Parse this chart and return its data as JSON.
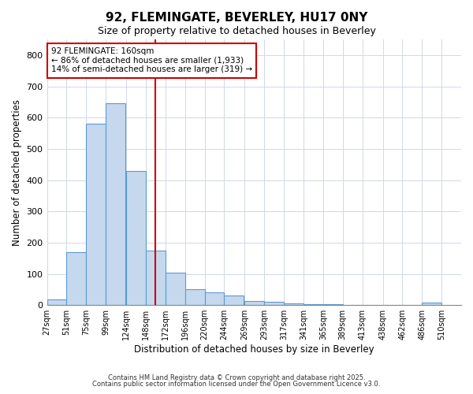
{
  "title": "92, FLEMINGATE, BEVERLEY, HU17 0NY",
  "subtitle": "Size of property relative to detached houses in Beverley",
  "xlabel": "Distribution of detached houses by size in Beverley",
  "ylabel": "Number of detached properties",
  "bar_color": "#c5d8ed",
  "bar_edge_color": "#5b9bd5",
  "vline_color": "#cc0000",
  "vline_x": 160,
  "annotation_title": "92 FLEMINGATE: 160sqm",
  "annotation_line1": "← 86% of detached houses are smaller (1,933)",
  "annotation_line2": "14% of semi-detached houses are larger (319) →",
  "annotation_box_color": "#cc0000",
  "background_color": "#ffffff",
  "grid_color": "#d0d8e8",
  "bins_left": [
    27,
    51,
    75,
    99,
    124,
    148,
    172,
    196,
    220,
    244,
    269,
    293,
    317,
    341,
    365,
    389,
    413,
    438,
    462,
    486
  ],
  "bin_width": 24,
  "bin_labels": [
    "27sqm",
    "51sqm",
    "75sqm",
    "99sqm",
    "124sqm",
    "148sqm",
    "172sqm",
    "196sqm",
    "220sqm",
    "244sqm",
    "269sqm",
    "293sqm",
    "317sqm",
    "341sqm",
    "365sqm",
    "389sqm",
    "413sqm",
    "438sqm",
    "462sqm",
    "486sqm",
    "510sqm"
  ],
  "bin_tick_positions": [
    27,
    51,
    75,
    99,
    124,
    148,
    172,
    196,
    220,
    244,
    269,
    293,
    317,
    341,
    365,
    389,
    413,
    438,
    462,
    486,
    510
  ],
  "values": [
    17,
    170,
    580,
    645,
    430,
    175,
    103,
    52,
    40,
    32,
    12,
    10,
    5,
    3,
    2,
    0,
    0,
    0,
    0,
    8
  ],
  "ylim": [
    0,
    850
  ],
  "yticks": [
    0,
    100,
    200,
    300,
    400,
    500,
    600,
    700,
    800
  ],
  "footer1": "Contains HM Land Registry data © Crown copyright and database right 2025.",
  "footer2": "Contains public sector information licensed under the Open Government Licence v3.0."
}
